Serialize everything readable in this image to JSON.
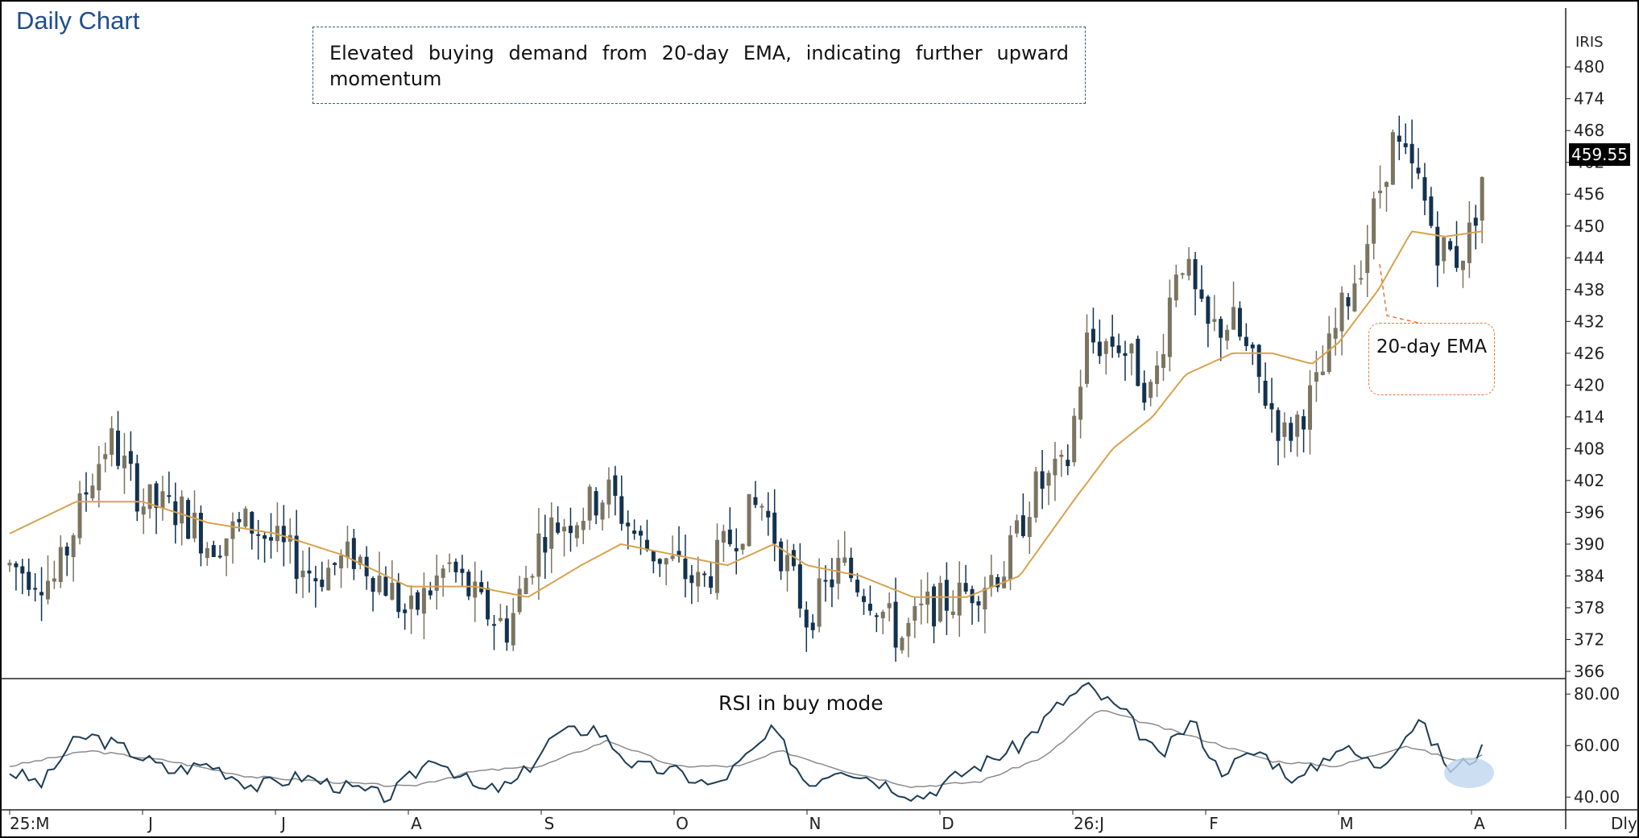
{
  "title": "Daily Chart",
  "annotation_main": "Elevated buying demand from 20-day EMA, indicating further upward momentum",
  "annotation_ema": "20-day EMA",
  "annotation_rsi": "RSI in buy mode",
  "ticker": "IRIS",
  "last_price_label": "459.55",
  "period_label": "Dly",
  "colors": {
    "up_candle": "#7a7461",
    "down_candle": "#13324f",
    "ema": "#d7a24f",
    "rsi": "#1d3d55",
    "rsi_signal": "#8b8b8b",
    "title": "#1f4e8c",
    "highlight": "#bfd6ee"
  },
  "chart_data": [
    {
      "type": "candlestick",
      "title": "Daily Chart",
      "y_ticks": [
        "480",
        "474",
        "468",
        "462",
        "456",
        "450",
        "444",
        "438",
        "432",
        "426",
        "420",
        "414",
        "408",
        "402",
        "396",
        "390",
        "384",
        "378",
        "372",
        "366"
      ],
      "ylim": [
        366,
        482
      ],
      "x_ticks": [
        "25:M",
        "J",
        "J",
        "A",
        "S",
        "O",
        "N",
        "D",
        "26:J",
        "F",
        "M",
        "A"
      ],
      "series": [
        {
          "name": "20-day EMA",
          "kind": "line"
        }
      ],
      "price_anchors": [
        {
          "m": 0,
          "p": 386
        },
        {
          "m": 0.35,
          "p": 383
        },
        {
          "m": 0.6,
          "p": 402
        },
        {
          "m": 0.75,
          "p": 410
        },
        {
          "m": 1.0,
          "p": 398
        },
        {
          "m": 1.3,
          "p": 396
        },
        {
          "m": 1.5,
          "p": 390
        },
        {
          "m": 1.8,
          "p": 394
        },
        {
          "m": 2.0,
          "p": 390
        },
        {
          "m": 2.3,
          "p": 384
        },
        {
          "m": 2.6,
          "p": 388
        },
        {
          "m": 2.85,
          "p": 382
        },
        {
          "m": 3.0,
          "p": 376
        },
        {
          "m": 3.3,
          "p": 386
        },
        {
          "m": 3.55,
          "p": 378
        },
        {
          "m": 3.75,
          "p": 374
        },
        {
          "m": 4.0,
          "p": 392
        },
        {
          "m": 4.3,
          "p": 396
        },
        {
          "m": 4.5,
          "p": 400
        },
        {
          "m": 4.75,
          "p": 390
        },
        {
          "m": 5.0,
          "p": 386
        },
        {
          "m": 5.2,
          "p": 382
        },
        {
          "m": 5.45,
          "p": 392
        },
        {
          "m": 5.65,
          "p": 398
        },
        {
          "m": 5.85,
          "p": 386
        },
        {
          "m": 6.0,
          "p": 376
        },
        {
          "m": 6.25,
          "p": 386
        },
        {
          "m": 6.5,
          "p": 380
        },
        {
          "m": 6.7,
          "p": 372
        },
        {
          "m": 6.9,
          "p": 378
        },
        {
          "m": 7.15,
          "p": 380
        },
        {
          "m": 7.5,
          "p": 386
        },
        {
          "m": 7.7,
          "p": 400
        },
        {
          "m": 7.95,
          "p": 404
        },
        {
          "m": 8.1,
          "p": 428
        },
        {
          "m": 8.35,
          "p": 428
        },
        {
          "m": 8.6,
          "p": 418
        },
        {
          "m": 8.8,
          "p": 446
        },
        {
          "m": 9.0,
          "p": 430
        },
        {
          "m": 9.2,
          "p": 432
        },
        {
          "m": 9.45,
          "p": 418
        },
        {
          "m": 9.6,
          "p": 410
        },
        {
          "m": 9.85,
          "p": 420
        },
        {
          "m": 10.0,
          "p": 432
        },
        {
          "m": 10.2,
          "p": 446
        },
        {
          "m": 10.4,
          "p": 466
        },
        {
          "m": 10.6,
          "p": 458
        },
        {
          "m": 10.75,
          "p": 446
        },
        {
          "m": 10.9,
          "p": 444
        },
        {
          "m": 11.0,
          "p": 449
        },
        {
          "m": 11.08,
          "p": 459.55
        }
      ],
      "ema_anchors": [
        {
          "m": 0,
          "p": 392
        },
        {
          "m": 0.5,
          "p": 398
        },
        {
          "m": 1.0,
          "p": 398
        },
        {
          "m": 1.5,
          "p": 394
        },
        {
          "m": 2.0,
          "p": 392
        },
        {
          "m": 2.5,
          "p": 388
        },
        {
          "m": 3.0,
          "p": 382
        },
        {
          "m": 3.5,
          "p": 382
        },
        {
          "m": 3.9,
          "p": 380
        },
        {
          "m": 4.3,
          "p": 386
        },
        {
          "m": 4.6,
          "p": 390
        },
        {
          "m": 5.0,
          "p": 388
        },
        {
          "m": 5.4,
          "p": 386
        },
        {
          "m": 5.75,
          "p": 390
        },
        {
          "m": 6.0,
          "p": 386
        },
        {
          "m": 6.4,
          "p": 384
        },
        {
          "m": 6.8,
          "p": 380
        },
        {
          "m": 7.2,
          "p": 380
        },
        {
          "m": 7.6,
          "p": 384
        },
        {
          "m": 8.0,
          "p": 398
        },
        {
          "m": 8.3,
          "p": 408
        },
        {
          "m": 8.6,
          "p": 414
        },
        {
          "m": 8.85,
          "p": 422
        },
        {
          "m": 9.2,
          "p": 426
        },
        {
          "m": 9.5,
          "p": 426
        },
        {
          "m": 9.8,
          "p": 424
        },
        {
          "m": 10.0,
          "p": 428
        },
        {
          "m": 10.3,
          "p": 438
        },
        {
          "m": 10.55,
          "p": 449
        },
        {
          "m": 10.8,
          "p": 448
        },
        {
          "m": 11.08,
          "p": 449
        }
      ]
    },
    {
      "type": "line",
      "title": "RSI in buy mode",
      "y_ticks": [
        "80.00",
        "60.00",
        "40.00"
      ],
      "ylim": [
        36,
        86
      ],
      "series": [
        {
          "name": "RSI",
          "kind": "line"
        },
        {
          "name": "RSI signal",
          "kind": "line"
        }
      ],
      "rsi_anchors": [
        {
          "m": 0,
          "p": 50
        },
        {
          "m": 0.25,
          "p": 45
        },
        {
          "m": 0.45,
          "p": 60
        },
        {
          "m": 0.6,
          "p": 64
        },
        {
          "m": 0.9,
          "p": 58
        },
        {
          "m": 1.2,
          "p": 50
        },
        {
          "m": 1.5,
          "p": 53
        },
        {
          "m": 1.85,
          "p": 44
        },
        {
          "m": 2.2,
          "p": 48
        },
        {
          "m": 2.5,
          "p": 44
        },
        {
          "m": 2.85,
          "p": 40
        },
        {
          "m": 3.2,
          "p": 56
        },
        {
          "m": 3.55,
          "p": 42
        },
        {
          "m": 3.8,
          "p": 45
        },
        {
          "m": 4.1,
          "p": 64
        },
        {
          "m": 4.4,
          "p": 67
        },
        {
          "m": 4.7,
          "p": 52
        },
        {
          "m": 5.0,
          "p": 50
        },
        {
          "m": 5.3,
          "p": 44
        },
        {
          "m": 5.6,
          "p": 58
        },
        {
          "m": 5.75,
          "p": 66
        },
        {
          "m": 6.0,
          "p": 45
        },
        {
          "m": 6.25,
          "p": 52
        },
        {
          "m": 6.55,
          "p": 46
        },
        {
          "m": 6.85,
          "p": 40
        },
        {
          "m": 7.2,
          "p": 50
        },
        {
          "m": 7.6,
          "p": 60
        },
        {
          "m": 7.9,
          "p": 76
        },
        {
          "m": 8.1,
          "p": 83
        },
        {
          "m": 8.4,
          "p": 72
        },
        {
          "m": 8.65,
          "p": 55
        },
        {
          "m": 8.9,
          "p": 70
        },
        {
          "m": 9.1,
          "p": 50
        },
        {
          "m": 9.4,
          "p": 58
        },
        {
          "m": 9.7,
          "p": 46
        },
        {
          "m": 10.0,
          "p": 60
        },
        {
          "m": 10.3,
          "p": 52
        },
        {
          "m": 10.6,
          "p": 70
        },
        {
          "m": 10.85,
          "p": 50
        },
        {
          "m": 11.08,
          "p": 58
        }
      ],
      "signal_anchors": [
        {
          "m": 0,
          "p": 52
        },
        {
          "m": 0.6,
          "p": 58
        },
        {
          "m": 1.2,
          "p": 54
        },
        {
          "m": 1.8,
          "p": 48
        },
        {
          "m": 2.4,
          "p": 46
        },
        {
          "m": 3.0,
          "p": 44
        },
        {
          "m": 3.5,
          "p": 50
        },
        {
          "m": 4.0,
          "p": 52
        },
        {
          "m": 4.5,
          "p": 62
        },
        {
          "m": 5.0,
          "p": 52
        },
        {
          "m": 5.5,
          "p": 52
        },
        {
          "m": 5.8,
          "p": 58
        },
        {
          "m": 6.3,
          "p": 50
        },
        {
          "m": 6.8,
          "p": 44
        },
        {
          "m": 7.3,
          "p": 46
        },
        {
          "m": 7.8,
          "p": 56
        },
        {
          "m": 8.2,
          "p": 74
        },
        {
          "m": 8.6,
          "p": 68
        },
        {
          "m": 9.0,
          "p": 62
        },
        {
          "m": 9.5,
          "p": 54
        },
        {
          "m": 10.0,
          "p": 52
        },
        {
          "m": 10.5,
          "p": 60
        },
        {
          "m": 10.9,
          "p": 54
        },
        {
          "m": 11.08,
          "p": 56
        }
      ]
    }
  ]
}
